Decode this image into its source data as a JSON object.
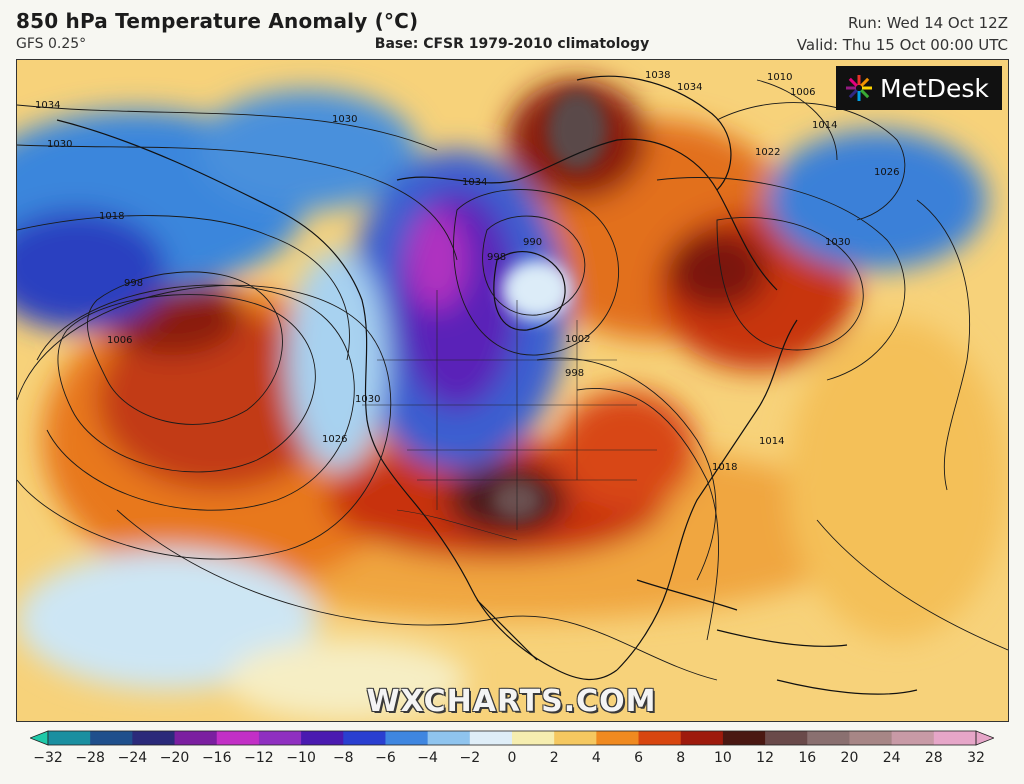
{
  "header": {
    "title": "850 hPa Temperature Anomaly (°C)",
    "model": "GFS 0.25°",
    "base": "Base: CFSR 1979-2010 climatology",
    "run": "Run: Wed 14 Oct 12Z",
    "valid": "Valid: Thu 15 Oct 00:00 UTC"
  },
  "logo": {
    "text": "MetDesk",
    "icon": "metdesk-star-icon"
  },
  "watermark": "WXCHARTS.COM",
  "map": {
    "region": "North America",
    "isobar_labels": [
      "1034",
      "1030",
      "1018",
      "998",
      "1006",
      "1030",
      "1026",
      "1030",
      "1002",
      "998",
      "1018",
      "1014",
      "1022",
      "1014",
      "1026",
      "1030",
      "1010",
      "1006",
      "1038",
      "1034",
      "990",
      "998",
      "1034"
    ]
  },
  "colorbar": {
    "ticks": [
      "−32",
      "−28",
      "−24",
      "−20",
      "−16",
      "−12",
      "−10",
      "−8",
      "−6",
      "−4",
      "−2",
      "0",
      "2",
      "4",
      "6",
      "8",
      "10",
      "12",
      "16",
      "20",
      "24",
      "28",
      "32"
    ],
    "colors": [
      "#1ec9a8",
      "#1a8fa0",
      "#1f4f8c",
      "#2b2a7a",
      "#7b1fa0",
      "#c22fc6",
      "#8f2fc0",
      "#4a1ab0",
      "#2a3fd0",
      "#3f86e0",
      "#8fc4ee",
      "#dfeef8",
      "#f6eeb0",
      "#f5c860",
      "#f08a20",
      "#d8460f",
      "#9e1a0c",
      "#4a1812",
      "#6a4a4a",
      "#8a7070",
      "#a78686",
      "#c89aa6",
      "#e6a6c8"
    ]
  }
}
